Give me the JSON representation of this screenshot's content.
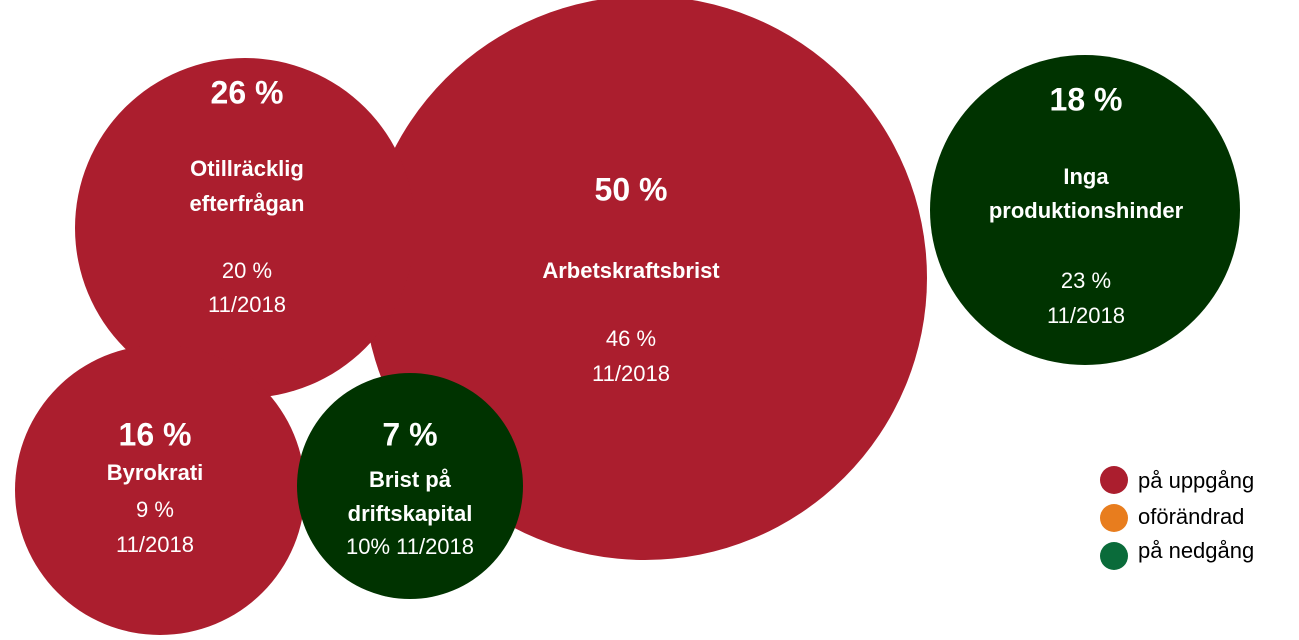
{
  "nodes": [
    {
      "share": "26 %",
      "label": [
        "Otillräcklig",
        "efterfrågan"
      ],
      "previous": [
        "20 %",
        "11/2018"
      ]
    },
    {
      "share": "50 %",
      "label": [
        "Arbetskraftsbrist"
      ],
      "previous": [
        "46 %",
        "11/2018"
      ]
    },
    {
      "share": "18 %",
      "label": [
        "Inga",
        "produktionshinder"
      ],
      "previous": [
        "23 %",
        "11/2018"
      ]
    },
    {
      "share": "16 %",
      "label": [
        "Byrokrati"
      ],
      "previous": [
        "9 %",
        "11/2018"
      ]
    },
    {
      "share": "7 %",
      "label": [
        "Brist på",
        "driftskapital"
      ],
      "previous": [
        "10% 11/2018"
      ]
    }
  ],
  "legend": [
    "på uppgång",
    "oförändrad",
    "på nedgång"
  ]
}
